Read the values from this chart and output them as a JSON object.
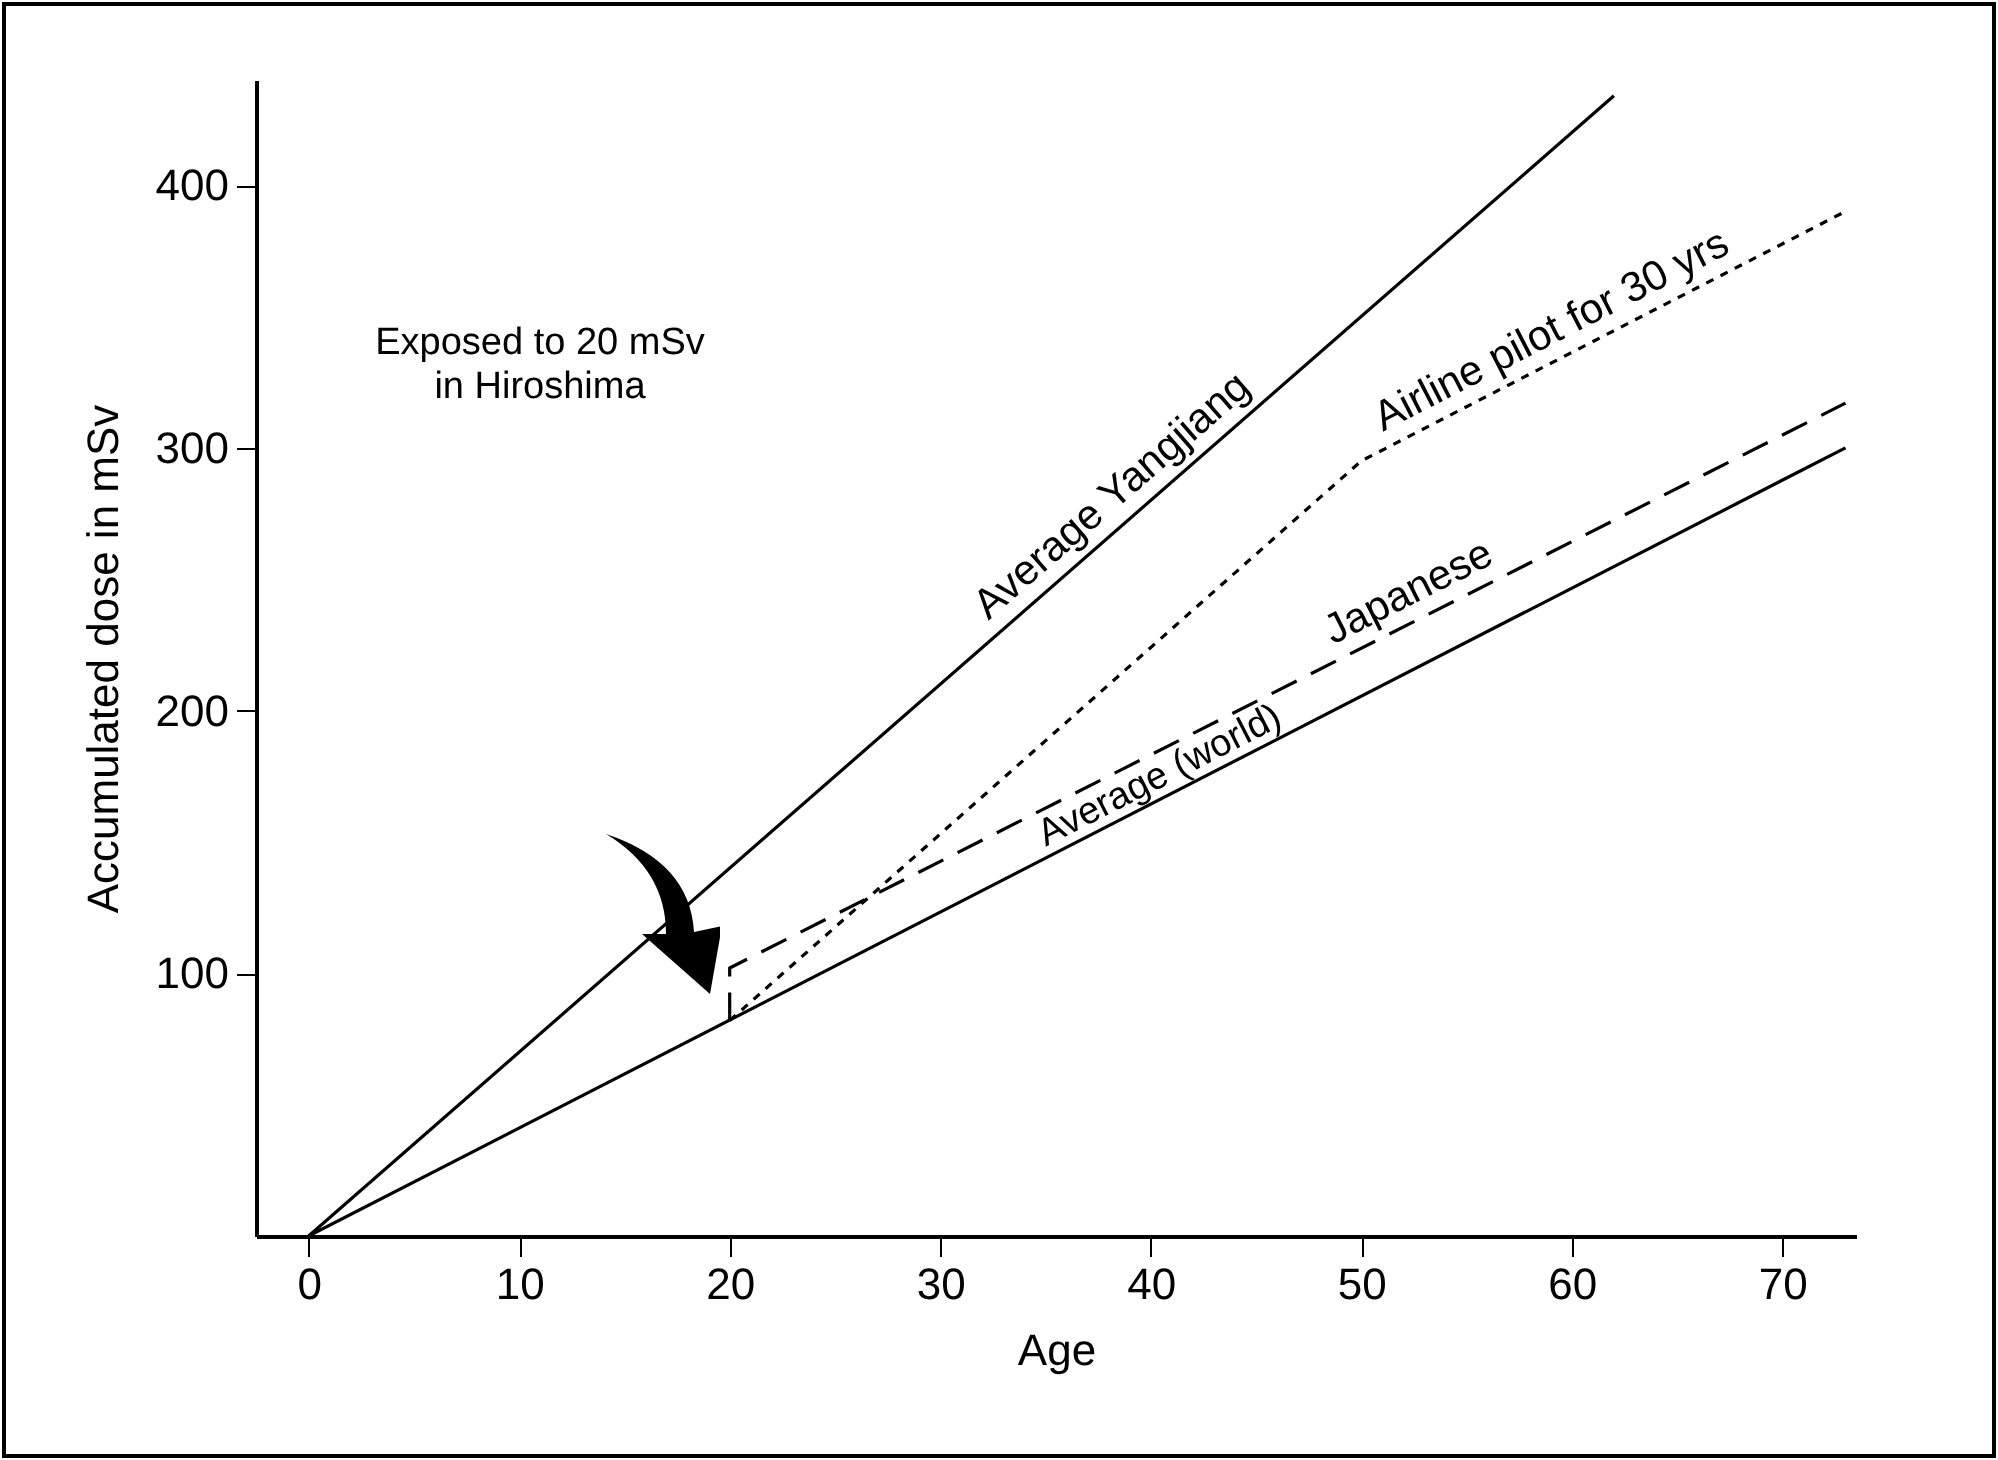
{
  "chart_data": {
    "type": "line",
    "xlabel": "Age",
    "ylabel": "Accumulated dose in mSv",
    "xlim": [
      -2.5,
      73.5
    ],
    "ylim": [
      0,
      440
    ],
    "xticks": [
      0,
      10,
      20,
      30,
      40,
      50,
      60,
      70
    ],
    "yticks": [
      100,
      200,
      300,
      400
    ],
    "series": [
      {
        "name": "Average Yangjiang",
        "color": "#000000",
        "line_style": "solid",
        "x": [
          0,
          62
        ],
        "values": [
          0,
          434
        ]
      },
      {
        "name": "Airline pilot for 30 yrs",
        "color": "#000000",
        "line_style": "dotted",
        "x": [
          20,
          50,
          73
        ],
        "values": [
          82,
          295,
          390
        ]
      },
      {
        "name": "Japanese",
        "color": "#000000",
        "line_style": "dashed",
        "x": [
          20,
          20,
          73
        ],
        "values": [
          82,
          102,
          317
        ]
      },
      {
        "name": "Average (world)",
        "color": "#000000",
        "line_style": "solid",
        "x": [
          0,
          73
        ],
        "values": [
          0,
          300
        ]
      }
    ],
    "annotations": [
      "Exposed to 20 mSv in Hiroshima"
    ]
  }
}
